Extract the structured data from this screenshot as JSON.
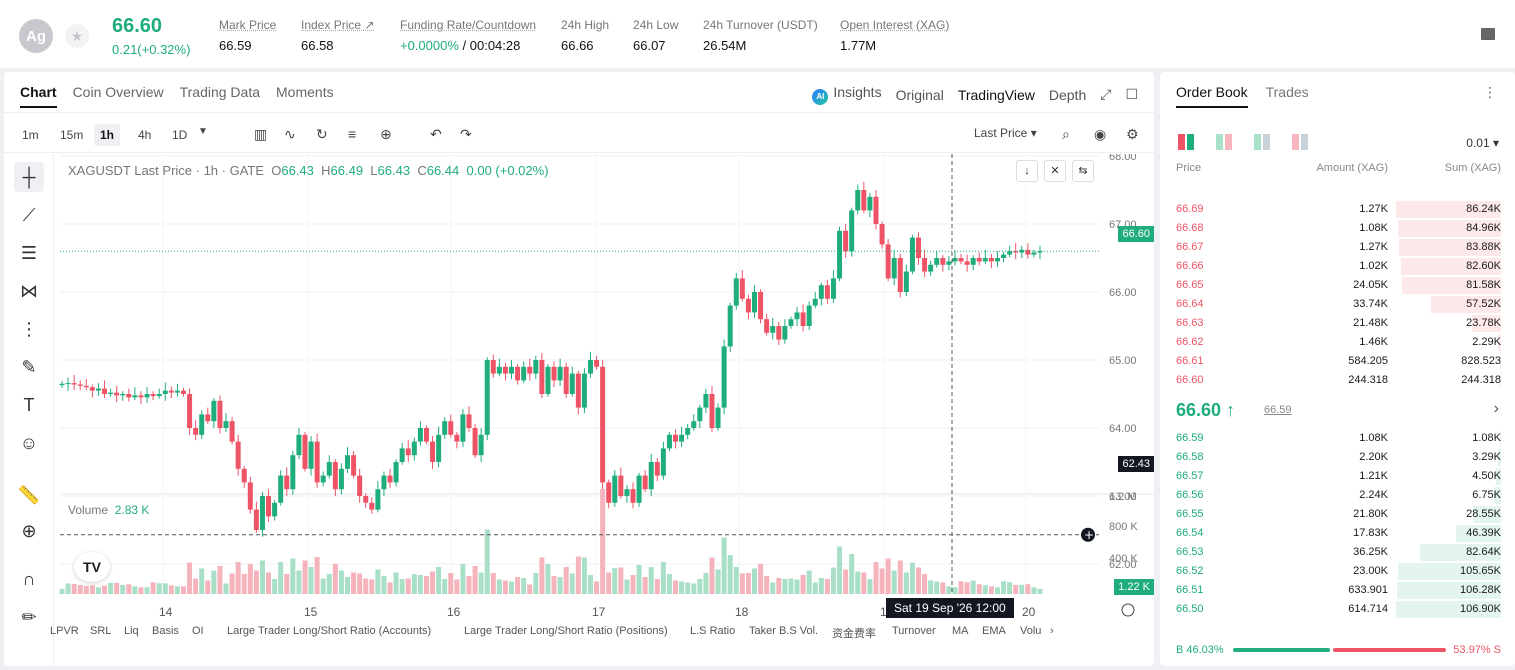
{
  "header": {
    "avatar": "Ag",
    "price": "66.60",
    "change": "0.21(+0.32%)",
    "stats": [
      {
        "label": "Mark Price",
        "value": "66.59"
      },
      {
        "label": "Index Price ↗",
        "value": "66.58"
      },
      {
        "label": "Funding Rate/Countdown",
        "value_green": "+0.0000%",
        "value": " / 00:04:28"
      },
      {
        "label": "24h High",
        "value": "66.66"
      },
      {
        "label": "24h Low",
        "value": "66.07"
      },
      {
        "label": "24h Turnover (USDT)",
        "value": "26.54M"
      },
      {
        "label": "Open Interest (XAG)",
        "value": "1.77M"
      }
    ]
  },
  "chart_tabs": [
    "Chart",
    "Coin Overview",
    "Trading Data",
    "Moments"
  ],
  "chart_views": {
    "insights": "Insights",
    "original": "Original",
    "tradingview": "TradingView",
    "depth": "Depth"
  },
  "timeframes": [
    "1m",
    "15m",
    "1h",
    "4h",
    "1D"
  ],
  "last_price_label": "Last Price",
  "legend": {
    "symbol": "XAGUSDT Last Price · 1h · GATE",
    "o": "66.43",
    "h": "66.49",
    "l": "66.43",
    "c": "66.44",
    "chg": "0.00 (+0.02%)"
  },
  "volume_legend": {
    "label": "Volume",
    "value": "2.83 K"
  },
  "price_labels": {
    "current": "66.60",
    "crosshair": "62.43",
    "volume_current": "1.22 K"
  },
  "date_tooltip": "Sat 19 Sep '26   12:00",
  "bottom_indicators": [
    "LPVR",
    "SRL",
    "Liq",
    "Basis",
    "OI",
    "Large Trader Long/Short Ratio (Accounts)",
    "Large Trader Long/Short Ratio (Positions)",
    "L.S Ratio",
    "Taker B.S Vol.",
    "资金费率",
    "Turnover",
    "MA",
    "EMA",
    "Volu"
  ],
  "chart_data": {
    "type": "candlestick",
    "title": "XAGUSDT Last Price · 1h · GATE",
    "y_ticks": [
      "68.00",
      "67.00",
      "66.00",
      "65.00",
      "64.00",
      "63.00",
      "62.00"
    ],
    "vol_ticks": [
      "1.2 M",
      "800 K",
      "400 K"
    ],
    "x_ticks": [
      "14",
      "15",
      "16",
      "17",
      "18",
      "19",
      "20"
    ],
    "ylim": [
      62.0,
      68.0
    ],
    "closes": [
      64.65,
      64.66,
      64.64,
      64.62,
      64.6,
      64.55,
      64.58,
      64.5,
      64.52,
      64.48,
      64.5,
      64.45,
      64.48,
      64.45,
      64.5,
      64.47,
      64.5,
      64.55,
      64.52,
      64.55,
      64.5,
      64.0,
      63.9,
      64.2,
      64.1,
      64.4,
      64.0,
      64.1,
      63.8,
      63.4,
      63.2,
      62.8,
      62.5,
      63.0,
      62.7,
      62.9,
      63.3,
      63.1,
      63.6,
      63.9,
      63.4,
      63.8,
      63.2,
      63.3,
      63.5,
      63.1,
      63.4,
      63.6,
      63.3,
      63.0,
      62.9,
      62.8,
      63.1,
      63.3,
      63.2,
      63.5,
      63.7,
      63.6,
      63.8,
      64.0,
      63.8,
      63.5,
      63.9,
      64.1,
      63.9,
      63.8,
      64.2,
      64.0,
      63.6,
      63.9,
      65.0,
      64.8,
      64.9,
      64.8,
      64.9,
      64.7,
      64.9,
      64.8,
      65.0,
      64.5,
      64.9,
      64.7,
      64.9,
      64.5,
      64.8,
      64.3,
      64.8,
      65.0,
      64.9,
      63.2,
      62.9,
      63.3,
      63.0,
      63.1,
      62.9,
      63.3,
      63.1,
      63.5,
      63.3,
      63.7,
      63.9,
      63.8,
      63.9,
      64.0,
      64.1,
      64.3,
      64.5,
      64.0,
      64.3,
      65.2,
      65.8,
      66.2,
      65.9,
      65.7,
      66.0,
      65.6,
      65.4,
      65.5,
      65.3,
      65.5,
      65.6,
      65.7,
      65.5,
      65.8,
      65.9,
      66.1,
      65.9,
      66.2,
      66.9,
      66.6,
      67.2,
      67.5,
      67.2,
      67.4,
      67.0,
      66.7,
      66.2,
      66.5,
      66.0,
      66.3,
      66.8,
      66.5,
      66.3,
      66.4,
      66.5,
      66.4,
      66.45,
      66.5,
      66.45,
      66.4,
      66.5,
      66.45,
      66.5,
      66.45,
      66.5,
      66.55,
      66.6,
      66.58,
      66.62,
      66.55,
      66.58,
      66.6
    ],
    "current": 66.6,
    "crosshair": 62.43
  },
  "orderbook": {
    "tabs": [
      "Order Book",
      "Trades"
    ],
    "precision": "0.01 ▾",
    "headers": {
      "price": "Price",
      "amount": "Amount (XAG)",
      "sum": "Sum (XAG)"
    },
    "asks": [
      {
        "p": "66.69",
        "a": "1.27K",
        "s": "86.24K",
        "d": 1.0
      },
      {
        "p": "66.68",
        "a": "1.08K",
        "s": "84.96K",
        "d": 0.985
      },
      {
        "p": "66.67",
        "a": "1.27K",
        "s": "83.88K",
        "d": 0.97
      },
      {
        "p": "66.66",
        "a": "1.02K",
        "s": "82.60K",
        "d": 0.955
      },
      {
        "p": "66.65",
        "a": "24.05K",
        "s": "81.58K",
        "d": 0.945
      },
      {
        "p": "66.64",
        "a": "33.74K",
        "s": "57.52K",
        "d": 0.665
      },
      {
        "p": "66.63",
        "a": "21.48K",
        "s": "23.78K",
        "d": 0.275
      },
      {
        "p": "66.62",
        "a": "1.46K",
        "s": "2.29K",
        "d": 0.03
      },
      {
        "p": "66.61",
        "a": "584.205",
        "s": "828.523",
        "d": 0.01
      },
      {
        "p": "66.60",
        "a": "244.318",
        "s": "244.318",
        "d": 0.005
      }
    ],
    "mid": {
      "price": "66.60 ↑",
      "mark": "66.59"
    },
    "bids": [
      {
        "p": "66.59",
        "a": "1.08K",
        "s": "1.08K",
        "d": 0.01
      },
      {
        "p": "66.58",
        "a": "2.20K",
        "s": "3.29K",
        "d": 0.03
      },
      {
        "p": "66.57",
        "a": "1.21K",
        "s": "4.50K",
        "d": 0.045
      },
      {
        "p": "66.56",
        "a": "2.24K",
        "s": "6.75K",
        "d": 0.063
      },
      {
        "p": "66.55",
        "a": "21.80K",
        "s": "28.55K",
        "d": 0.265
      },
      {
        "p": "66.54",
        "a": "17.83K",
        "s": "46.39K",
        "d": 0.43
      },
      {
        "p": "66.53",
        "a": "36.25K",
        "s": "82.64K",
        "d": 0.77
      },
      {
        "p": "66.52",
        "a": "23.00K",
        "s": "105.65K",
        "d": 0.985
      },
      {
        "p": "66.51",
        "a": "633.901",
        "s": "106.28K",
        "d": 0.99
      },
      {
        "p": "66.50",
        "a": "614.714",
        "s": "106.90K",
        "d": 1.0
      }
    ],
    "ratio": {
      "buy": "B 46.03%",
      "sell": "53.97% S",
      "buy_pct": 46.03
    }
  },
  "colors": {
    "up": "#1fad7c",
    "down": "#ef5466",
    "up_bg": "#e3f5ec",
    "down_bg": "#fde8ea"
  }
}
